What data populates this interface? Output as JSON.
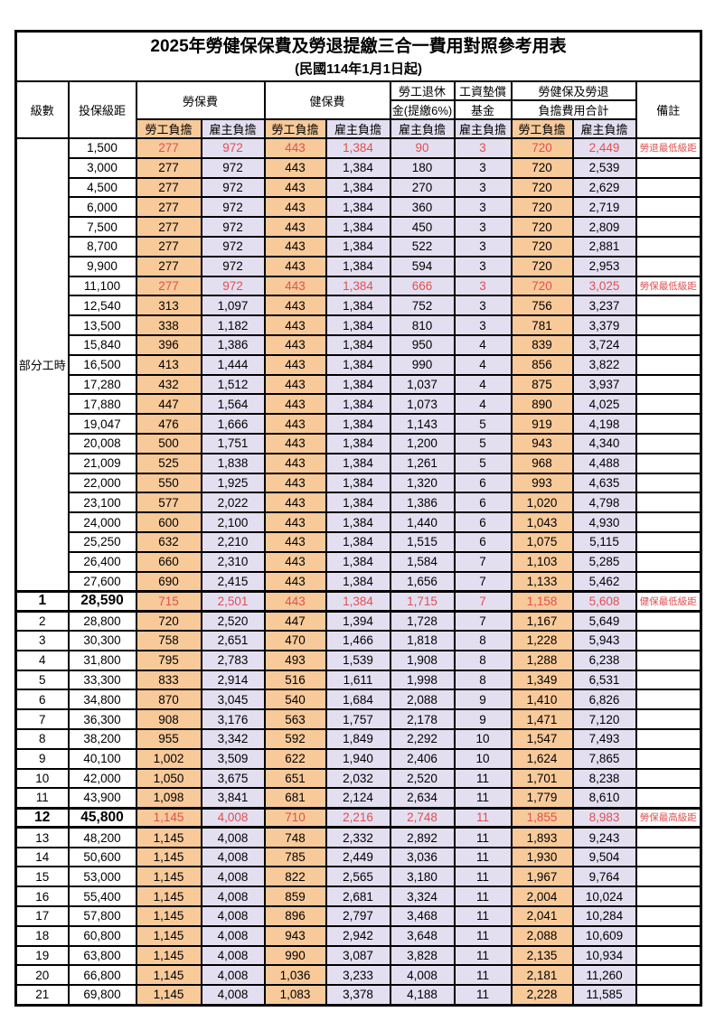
{
  "title": "2025年勞健保保費及勞退提繳三合一費用對照參考用表",
  "subtitle": "(民國114年1月1日起)",
  "colors": {
    "employee_column_bg": "#F8CA9A",
    "employer_column_bg": "#E3DFF1",
    "highlight_text": "#E05050",
    "border": "#000000"
  },
  "header": {
    "level": "級數",
    "bracket": "投保級距",
    "labor_insurance": "勞保費",
    "health_insurance": "健保費",
    "pension_line1": "勞工退休",
    "pension_line2": "金(提繳6%)",
    "wage_fund_line1": "工資墊償",
    "wage_fund_line2": "基金",
    "total_line1": "勞健保及勞退",
    "total_line2": "負擔費用合計",
    "remark": "備註",
    "employee": "勞工負擔",
    "employer": "雇主負擔"
  },
  "part_time": {
    "label": "部分工時",
    "rowspan": 23
  },
  "rows": [
    {
      "br": "1,500",
      "v": [
        "277",
        "972",
        "443",
        "1,384",
        "90",
        "3",
        "720",
        "2,449"
      ],
      "rm": "勞退最低級距",
      "red": true
    },
    {
      "br": "3,000",
      "v": [
        "277",
        "972",
        "443",
        "1,384",
        "180",
        "3",
        "720",
        "2,539"
      ]
    },
    {
      "br": "4,500",
      "v": [
        "277",
        "972",
        "443",
        "1,384",
        "270",
        "3",
        "720",
        "2,629"
      ]
    },
    {
      "br": "6,000",
      "v": [
        "277",
        "972",
        "443",
        "1,384",
        "360",
        "3",
        "720",
        "2,719"
      ]
    },
    {
      "br": "7,500",
      "v": [
        "277",
        "972",
        "443",
        "1,384",
        "450",
        "3",
        "720",
        "2,809"
      ]
    },
    {
      "br": "8,700",
      "v": [
        "277",
        "972",
        "443",
        "1,384",
        "522",
        "3",
        "720",
        "2,881"
      ]
    },
    {
      "br": "9,900",
      "v": [
        "277",
        "972",
        "443",
        "1,384",
        "594",
        "3",
        "720",
        "2,953"
      ]
    },
    {
      "br": "11,100",
      "v": [
        "277",
        "972",
        "443",
        "1,384",
        "666",
        "3",
        "720",
        "3,025"
      ],
      "rm": "勞保最低級距",
      "red": true
    },
    {
      "br": "12,540",
      "v": [
        "313",
        "1,097",
        "443",
        "1,384",
        "752",
        "3",
        "756",
        "3,237"
      ]
    },
    {
      "br": "13,500",
      "v": [
        "338",
        "1,182",
        "443",
        "1,384",
        "810",
        "3",
        "781",
        "3,379"
      ]
    },
    {
      "br": "15,840",
      "v": [
        "396",
        "1,386",
        "443",
        "1,384",
        "950",
        "4",
        "839",
        "3,724"
      ]
    },
    {
      "br": "16,500",
      "v": [
        "413",
        "1,444",
        "443",
        "1,384",
        "990",
        "4",
        "856",
        "3,822"
      ]
    },
    {
      "br": "17,280",
      "v": [
        "432",
        "1,512",
        "443",
        "1,384",
        "1,037",
        "4",
        "875",
        "3,937"
      ]
    },
    {
      "br": "17,880",
      "v": [
        "447",
        "1,564",
        "443",
        "1,384",
        "1,073",
        "4",
        "890",
        "4,025"
      ]
    },
    {
      "br": "19,047",
      "v": [
        "476",
        "1,666",
        "443",
        "1,384",
        "1,143",
        "5",
        "919",
        "4,198"
      ]
    },
    {
      "br": "20,008",
      "v": [
        "500",
        "1,751",
        "443",
        "1,384",
        "1,200",
        "5",
        "943",
        "4,340"
      ]
    },
    {
      "br": "21,009",
      "v": [
        "525",
        "1,838",
        "443",
        "1,384",
        "1,261",
        "5",
        "968",
        "4,488"
      ]
    },
    {
      "br": "22,000",
      "v": [
        "550",
        "1,925",
        "443",
        "1,384",
        "1,320",
        "6",
        "993",
        "4,635"
      ]
    },
    {
      "br": "23,100",
      "v": [
        "577",
        "2,022",
        "443",
        "1,384",
        "1,386",
        "6",
        "1,020",
        "4,798"
      ]
    },
    {
      "br": "24,000",
      "v": [
        "600",
        "2,100",
        "443",
        "1,384",
        "1,440",
        "6",
        "1,043",
        "4,930"
      ]
    },
    {
      "br": "25,250",
      "v": [
        "632",
        "2,210",
        "443",
        "1,384",
        "1,515",
        "6",
        "1,075",
        "5,115"
      ]
    },
    {
      "br": "26,400",
      "v": [
        "660",
        "2,310",
        "443",
        "1,384",
        "1,584",
        "7",
        "1,103",
        "5,285"
      ]
    },
    {
      "br": "27,600",
      "v": [
        "690",
        "2,415",
        "443",
        "1,384",
        "1,656",
        "7",
        "1,133",
        "5,462"
      ]
    },
    {
      "lv": "1",
      "br": "28,590",
      "v": [
        "715",
        "2,501",
        "443",
        "1,384",
        "1,715",
        "7",
        "1,158",
        "5,608"
      ],
      "rm": "健保最低級距",
      "red": true,
      "big": true,
      "section": true
    },
    {
      "lv": "2",
      "br": "28,800",
      "v": [
        "720",
        "2,520",
        "447",
        "1,394",
        "1,728",
        "7",
        "1,167",
        "5,649"
      ]
    },
    {
      "lv": "3",
      "br": "30,300",
      "v": [
        "758",
        "2,651",
        "470",
        "1,466",
        "1,818",
        "8",
        "1,228",
        "5,943"
      ]
    },
    {
      "lv": "4",
      "br": "31,800",
      "v": [
        "795",
        "2,783",
        "493",
        "1,539",
        "1,908",
        "8",
        "1,288",
        "6,238"
      ]
    },
    {
      "lv": "5",
      "br": "33,300",
      "v": [
        "833",
        "2,914",
        "516",
        "1,611",
        "1,998",
        "8",
        "1,349",
        "6,531"
      ]
    },
    {
      "lv": "6",
      "br": "34,800",
      "v": [
        "870",
        "3,045",
        "540",
        "1,684",
        "2,088",
        "9",
        "1,410",
        "6,826"
      ]
    },
    {
      "lv": "7",
      "br": "36,300",
      "v": [
        "908",
        "3,176",
        "563",
        "1,757",
        "2,178",
        "9",
        "1,471",
        "7,120"
      ]
    },
    {
      "lv": "8",
      "br": "38,200",
      "v": [
        "955",
        "3,342",
        "592",
        "1,849",
        "2,292",
        "10",
        "1,547",
        "7,493"
      ]
    },
    {
      "lv": "9",
      "br": "40,100",
      "v": [
        "1,002",
        "3,509",
        "622",
        "1,940",
        "2,406",
        "10",
        "1,624",
        "7,865"
      ]
    },
    {
      "lv": "10",
      "br": "42,000",
      "v": [
        "1,050",
        "3,675",
        "651",
        "2,032",
        "2,520",
        "11",
        "1,701",
        "8,238"
      ]
    },
    {
      "lv": "11",
      "br": "43,900",
      "v": [
        "1,098",
        "3,841",
        "681",
        "2,124",
        "2,634",
        "11",
        "1,779",
        "8,610"
      ]
    },
    {
      "lv": "12",
      "br": "45,800",
      "v": [
        "1,145",
        "4,008",
        "710",
        "2,216",
        "2,748",
        "11",
        "1,855",
        "8,983"
      ],
      "rm": "勞保最高級距",
      "red": true,
      "big": true,
      "section": true
    },
    {
      "lv": "13",
      "br": "48,200",
      "v": [
        "1,145",
        "4,008",
        "748",
        "2,332",
        "2,892",
        "11",
        "1,893",
        "9,243"
      ]
    },
    {
      "lv": "14",
      "br": "50,600",
      "v": [
        "1,145",
        "4,008",
        "785",
        "2,449",
        "3,036",
        "11",
        "1,930",
        "9,504"
      ]
    },
    {
      "lv": "15",
      "br": "53,000",
      "v": [
        "1,145",
        "4,008",
        "822",
        "2,565",
        "3,180",
        "11",
        "1,967",
        "9,764"
      ]
    },
    {
      "lv": "16",
      "br": "55,400",
      "v": [
        "1,145",
        "4,008",
        "859",
        "2,681",
        "3,324",
        "11",
        "2,004",
        "10,024"
      ]
    },
    {
      "lv": "17",
      "br": "57,800",
      "v": [
        "1,145",
        "4,008",
        "896",
        "2,797",
        "3,468",
        "11",
        "2,041",
        "10,284"
      ]
    },
    {
      "lv": "18",
      "br": "60,800",
      "v": [
        "1,145",
        "4,008",
        "943",
        "2,942",
        "3,648",
        "11",
        "2,088",
        "10,609"
      ]
    },
    {
      "lv": "19",
      "br": "63,800",
      "v": [
        "1,145",
        "4,008",
        "990",
        "3,087",
        "3,828",
        "11",
        "2,135",
        "10,934"
      ]
    },
    {
      "lv": "20",
      "br": "66,800",
      "v": [
        "1,145",
        "4,008",
        "1,036",
        "3,233",
        "4,008",
        "11",
        "2,181",
        "11,260"
      ]
    },
    {
      "lv": "21",
      "br": "69,800",
      "v": [
        "1,145",
        "4,008",
        "1,083",
        "3,378",
        "4,188",
        "11",
        "2,228",
        "11,585"
      ]
    }
  ]
}
